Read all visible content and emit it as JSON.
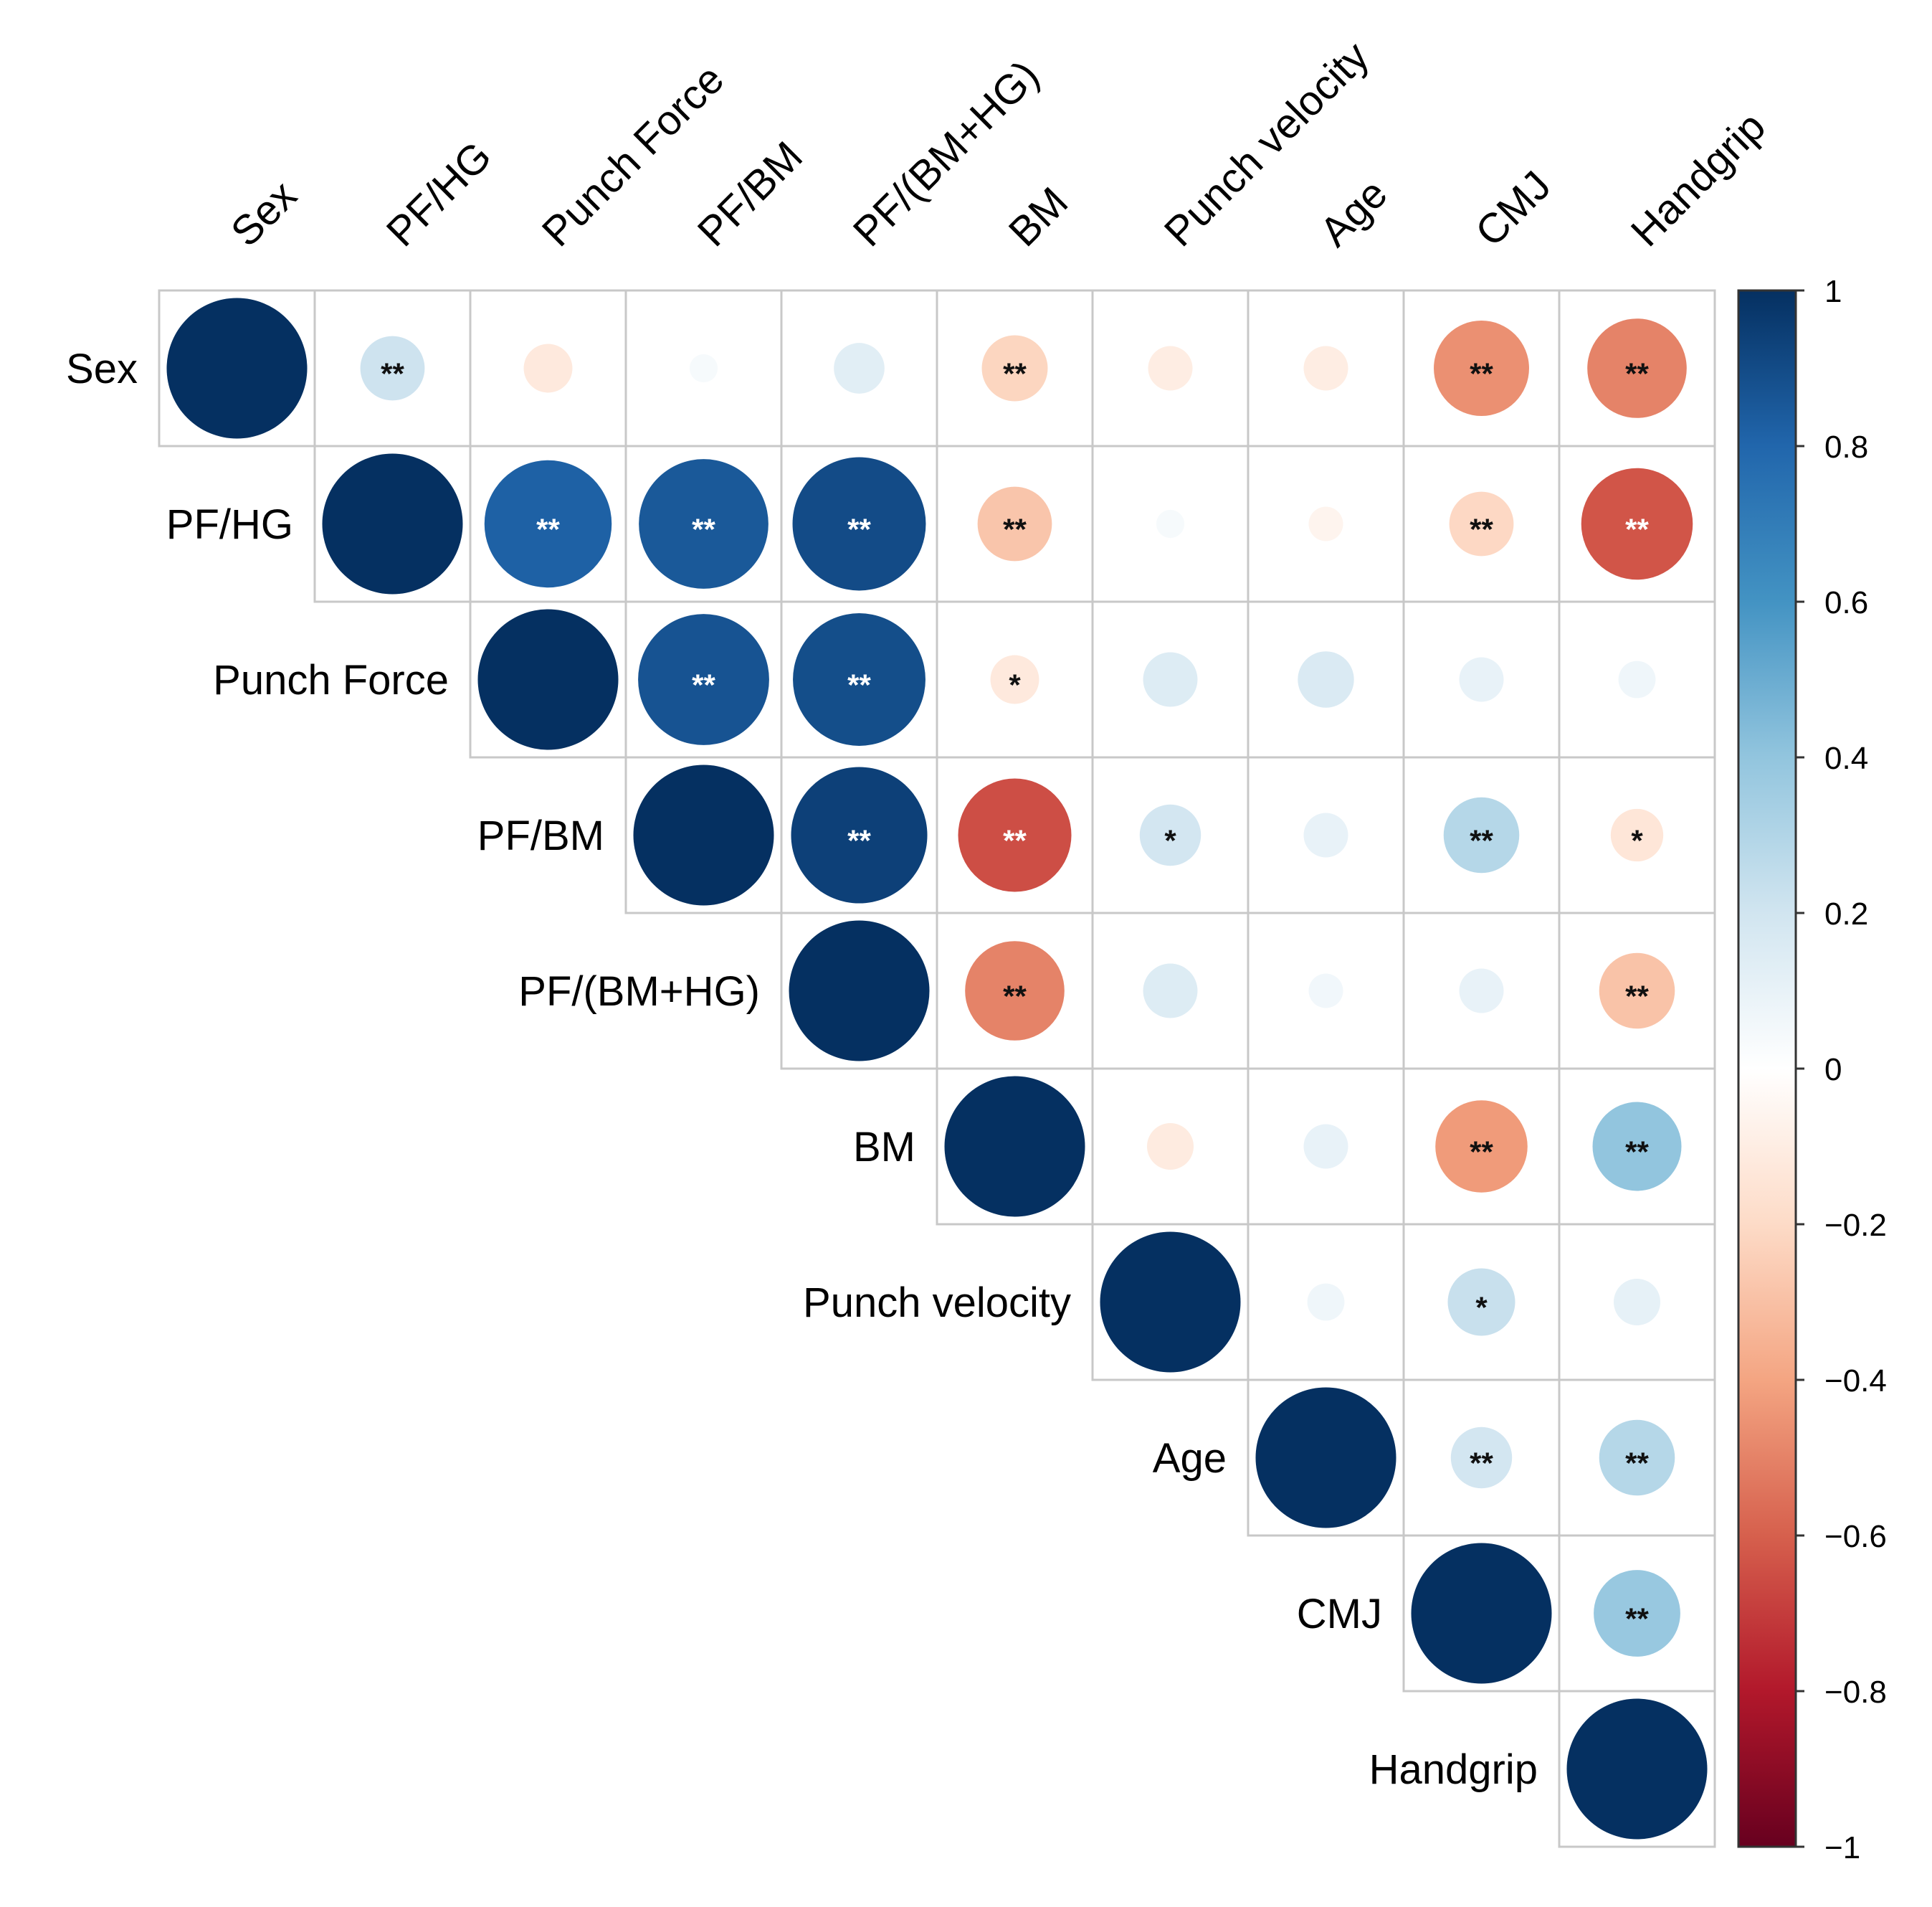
{
  "chart_data": {
    "type": "heatmap",
    "style": "corrplot-circle-upper",
    "variables": [
      "Sex",
      "PF/HG",
      "Punch Force",
      "PF/BM",
      "PF/(BM+HG)",
      "BM",
      "Punch velocity",
      "Age",
      "CMJ",
      "Handgrip"
    ],
    "matrix": [
      [
        1.0,
        0.21,
        -0.12,
        0.04,
        0.13,
        -0.22,
        -0.1,
        -0.1,
        -0.46,
        -0.5
      ],
      [
        null,
        1.0,
        0.82,
        0.85,
        0.9,
        -0.28,
        0.04,
        -0.06,
        -0.21,
        -0.63
      ],
      [
        null,
        null,
        1.0,
        0.87,
        0.89,
        -0.12,
        0.15,
        0.16,
        0.1,
        0.07
      ],
      [
        null,
        null,
        null,
        1.0,
        0.94,
        -0.65,
        0.19,
        0.1,
        0.29,
        -0.14
      ],
      [
        null,
        null,
        null,
        null,
        1.0,
        -0.5,
        0.15,
        0.06,
        0.1,
        -0.29
      ],
      [
        null,
        null,
        null,
        null,
        null,
        1.0,
        -0.11,
        0.1,
        -0.43,
        0.4
      ],
      [
        null,
        null,
        null,
        null,
        null,
        null,
        1.0,
        0.07,
        0.23,
        0.11
      ],
      [
        null,
        null,
        null,
        null,
        null,
        null,
        null,
        1.0,
        0.19,
        0.29
      ],
      [
        null,
        null,
        null,
        null,
        null,
        null,
        null,
        null,
        1.0,
        0.38
      ],
      [
        null,
        null,
        null,
        null,
        null,
        null,
        null,
        null,
        null,
        1.0
      ]
    ],
    "significance": [
      [
        "",
        "**",
        "",
        "",
        "",
        "**",
        "",
        "",
        "**",
        "**"
      ],
      [
        "",
        "",
        "**",
        "**",
        "**",
        "**",
        "",
        "",
        "**",
        "**"
      ],
      [
        "",
        "",
        "",
        "**",
        "**",
        "*",
        "",
        "",
        "",
        ""
      ],
      [
        "",
        "",
        "",
        "",
        "**",
        "**",
        "*",
        "",
        "**",
        "*"
      ],
      [
        "",
        "",
        "",
        "",
        "",
        "**",
        "",
        "",
        "",
        "**"
      ],
      [
        "",
        "",
        "",
        "",
        "",
        "",
        "",
        "",
        "**",
        "**"
      ],
      [
        "",
        "",
        "",
        "",
        "",
        "",
        "",
        "",
        "*",
        ""
      ],
      [
        "",
        "",
        "",
        "",
        "",
        "",
        "",
        "",
        "**",
        "**"
      ],
      [
        "",
        "",
        "",
        "",
        "",
        "",
        "",
        "",
        "",
        "**"
      ],
      [
        "",
        "",
        "",
        "",
        "",
        "",
        "",
        "",
        "",
        ""
      ]
    ],
    "colorbar": {
      "range": [
        -1,
        1
      ],
      "ticks": [
        "1",
        "0.8",
        "0.6",
        "0.4",
        "0.2",
        "0",
        "−0.2",
        "−0.4",
        "−0.6",
        "−0.8",
        "−1"
      ],
      "tick_values": [
        1,
        0.8,
        0.6,
        0.4,
        0.2,
        0,
        -0.2,
        -0.4,
        -0.6,
        -0.8,
        -1
      ],
      "colors": [
        "#67001F",
        "#B2182B",
        "#D6604D",
        "#F4A582",
        "#FDDBC7",
        "#FFFFFF",
        "#D1E5F0",
        "#92C5DE",
        "#4393C3",
        "#2166AC",
        "#053061"
      ]
    },
    "legend_position": "right"
  }
}
